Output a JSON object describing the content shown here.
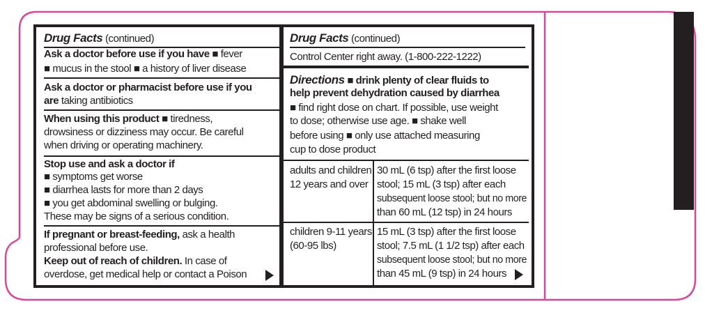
{
  "colors": {
    "outline": "#d6489a",
    "ink": "#231f20"
  },
  "left": {
    "lines": [
      [
        {
          "t": "Drug Facts",
          "s": "bi"
        },
        {
          "t": " (continued)",
          "s": "n"
        }
      ],
      [
        {
          "t": "Ask a doctor before use if you have",
          "s": "b"
        },
        {
          "t": "   ■ fever",
          "s": "n"
        }
      ],
      [
        {
          "t": "■ mucus in the stool   ■ a history of liver disease",
          "s": "n"
        }
      ],
      [
        {
          "t": "Ask a doctor or pharmacist before use if you",
          "s": "b"
        }
      ],
      [
        {
          "t": "are",
          "s": "b"
        },
        {
          "t": " taking antibiotics",
          "s": "n"
        }
      ],
      [
        {
          "t": "When using this product",
          "s": "b"
        },
        {
          "t": "   ■ tiredness,",
          "s": "n"
        }
      ],
      [
        {
          "t": "drowsiness or dizziness may occur. Be careful",
          "s": "n"
        }
      ],
      [
        {
          "t": "when driving or operating machinery.",
          "s": "n"
        }
      ],
      [
        {
          "t": "Stop use and ask a doctor if",
          "s": "b"
        }
      ],
      [
        {
          "t": "■ symptoms get worse",
          "s": "n"
        }
      ],
      [
        {
          "t": "■ diarrhea lasts for more than 2 days",
          "s": "n"
        }
      ],
      [
        {
          "t": "■ you get abdominal swelling or bulging.",
          "s": "n"
        }
      ],
      [
        {
          "t": "   These may be signs of a serious condition.",
          "s": "n"
        }
      ],
      [
        {
          "t": "If pregnant or breast-feeding,",
          "s": "b"
        },
        {
          "t": " ask a health",
          "s": "n"
        }
      ],
      [
        {
          "t": "professional before use.",
          "s": "n"
        }
      ],
      [
        {
          "t": "Keep out of reach of children.",
          "s": "b"
        },
        {
          "t": " In case of",
          "s": "n"
        }
      ],
      [
        {
          "t": "overdose, get medical help or contact a Poison",
          "s": "n"
        }
      ]
    ]
  },
  "right": {
    "lines": [
      [
        {
          "t": "Drug Facts",
          "s": "bi"
        },
        {
          "t": " (continued)",
          "s": "n"
        }
      ],
      [
        {
          "t": "Control Center right away. (1-800-222-1222)",
          "s": "n"
        }
      ],
      [
        {
          "t": "Directions",
          "s": "bi"
        },
        {
          "t": "   ■ drink plenty of clear fluids to",
          "s": "b"
        }
      ],
      [
        {
          "t": "help prevent dehydration caused by diarrhea",
          "s": "b"
        }
      ],
      [
        {
          "t": "■ find right dose on chart. If possible, use weight",
          "s": "n"
        }
      ],
      [
        {
          "t": "to dose; otherwise use age.    ■ shake well",
          "s": "n"
        }
      ],
      [
        {
          "t": "before using    ■ only use attached measuring",
          "s": "n"
        }
      ],
      [
        {
          "t": "cup to dose product",
          "s": "n"
        }
      ]
    ],
    "dose_table": [
      {
        "age": [
          "adults and children",
          "12 years and over"
        ],
        "dose": [
          "30 mL (6 tsp) after the first loose",
          "stool; 15 mL (3 tsp) after each",
          "subsequent loose stool; but no more",
          "than 60 mL (12 tsp) in 24 hours"
        ]
      },
      {
        "age": [
          "children 9-11 years",
          "(60-95 lbs)"
        ],
        "dose": [
          "15 mL (3 tsp) after the first loose",
          "stool; 7.5 mL (1 1/2 tsp) after each",
          "subsequent loose stool; but no more",
          "than 45 mL (9 tsp) in 24 hours"
        ]
      }
    ]
  },
  "icons": {
    "continue": "arrow-right-triangle-icon"
  }
}
